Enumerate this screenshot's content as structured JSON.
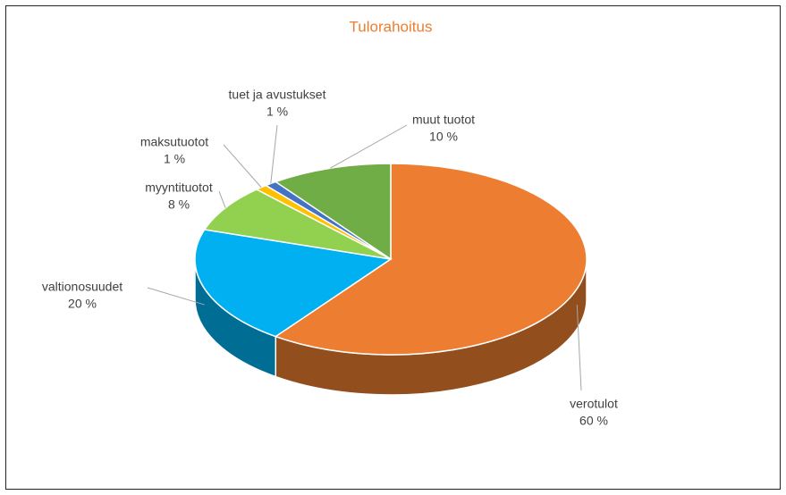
{
  "chart_data": {
    "type": "pie",
    "title": "Tulorahoitus",
    "categories": [
      "verotulot",
      "valtionosuudet",
      "myyntituotot",
      "maksutuotot",
      "tuet ja avustukset",
      "muut tuotot"
    ],
    "values": [
      60,
      20,
      8,
      1,
      1,
      10
    ],
    "value_labels": [
      "60 %",
      "20 %",
      "8 %",
      "1 %",
      "1 %",
      "10 %"
    ],
    "colors": [
      "#ed7d31",
      "#00b0f0",
      "#92d050",
      "#ffc000",
      "#4472c4",
      "#70ad47"
    ]
  }
}
